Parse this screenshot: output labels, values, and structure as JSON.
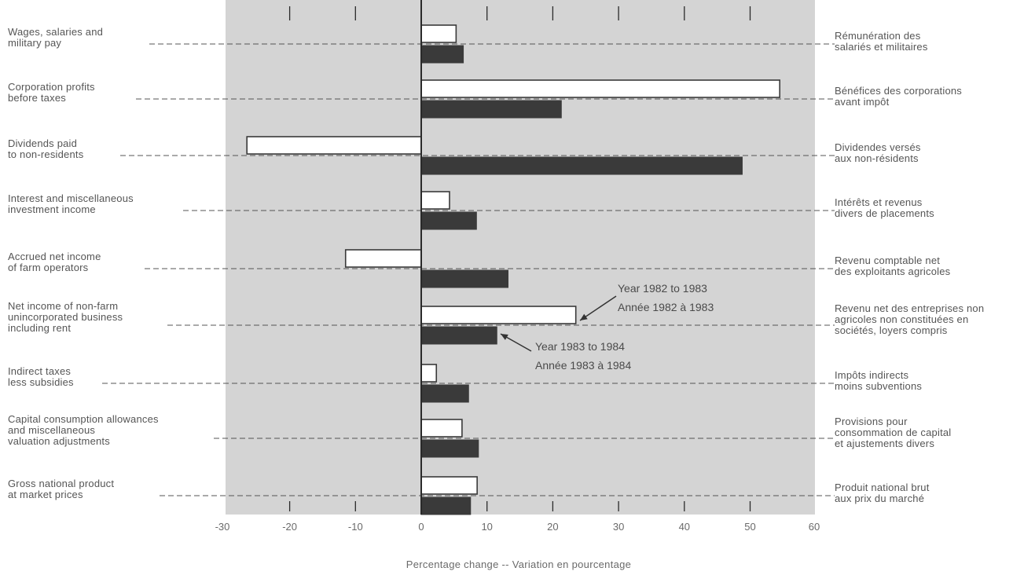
{
  "chart_data": {
    "type": "bar",
    "orientation": "horizontal",
    "xlabel": "Percentage change -- Variation en pourcentage",
    "xlim": [
      -30,
      60
    ],
    "xticks": [
      "-30",
      "-20",
      "-10",
      "0",
      "10",
      "20",
      "30",
      "40",
      "50",
      "60"
    ],
    "grid": false,
    "categories_en": [
      "Wages, salaries and\nmilitary pay",
      "Corporation profits\nbefore taxes",
      "Dividends paid\nto non-residents",
      "Interest and miscellaneous\ninvestment income",
      "Accrued net income\nof farm operators",
      "Net income of non-farm\nunincorporated business\nincluding rent",
      "Indirect taxes\nless subsidies",
      "Capital consumption allowances\nand miscellaneous\nvaluation adjustments",
      "Gross national product\nat market prices"
    ],
    "categories_fr": [
      "Rémunération des\nsalariés et militaires",
      "Bénéfices des corporations\navant impôt",
      "Dividendes versés\naux non-résidents",
      "Intérêts et revenus\ndivers de placements",
      "Revenu comptable net\ndes exploitants agricoles",
      "Revenu net des entreprises non\nagricoles non constituées en\nsociétés, loyers compris",
      "Impôts indirects\nmoins subventions",
      "Provisions pour\nconsommation de capital\net ajustements divers",
      "Produit national brut\naux prix du marché"
    ],
    "series": [
      {
        "name": "Year 1982 to 1983 / Année 1982 à 1983",
        "fill": "#ffffff",
        "values": [
          5.3,
          54.5,
          -26.5,
          4.3,
          -11.5,
          23.5,
          2.3,
          6.2,
          8.5
        ]
      },
      {
        "name": "Year 1983 to 1984 / Année 1983 à 1984",
        "fill": "#3a3a3a",
        "values": [
          6.4,
          21.3,
          48.8,
          8.4,
          13.2,
          11.5,
          7.2,
          8.7,
          7.5
        ]
      }
    ],
    "annotations": [
      {
        "series": 0,
        "category": 5,
        "text": [
          "Year 1982 to 1983",
          "Année 1982 à 1983"
        ]
      },
      {
        "series": 1,
        "category": 5,
        "text": [
          "Year 1983 to 1984",
          "Année 1983 à 1984"
        ]
      }
    ]
  },
  "colors": {
    "plot_bg": "#d4d4d4",
    "bar_dark": "#3a3a3a",
    "bar_light": "#ffffff",
    "text": "#555555"
  }
}
